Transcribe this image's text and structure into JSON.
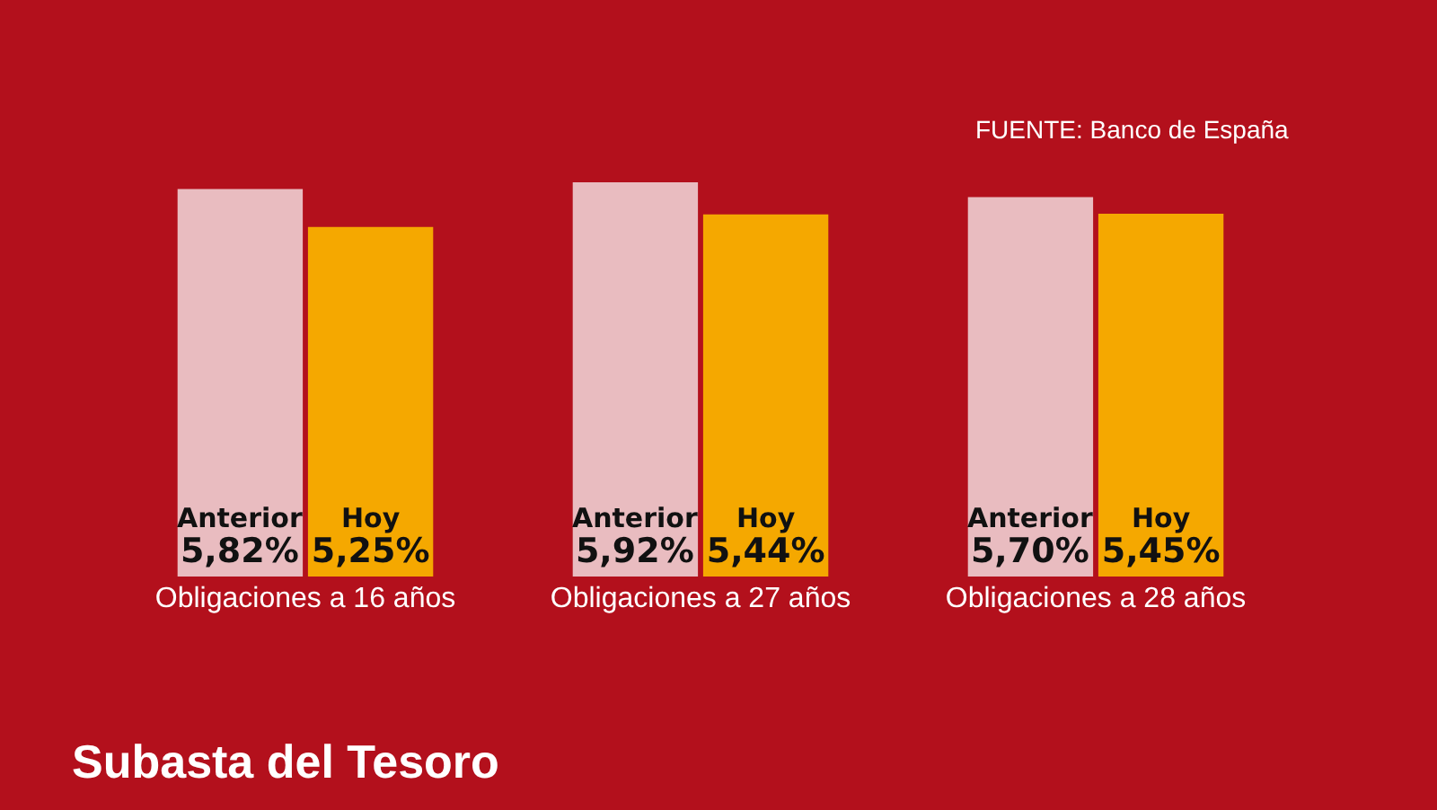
{
  "chart_data": {
    "type": "bar",
    "title": "Subasta del Tesoro",
    "annotations": [
      "FUENTE: Banco de España"
    ],
    "categories": [
      "Obligaciones a 16 años",
      "Obligaciones a 27 años",
      "Obligaciones a 28 años"
    ],
    "series": [
      {
        "name": "Anterior",
        "color": "#e9bcc0",
        "values": [
          5.82,
          5.92,
          5.7
        ],
        "value_labels": [
          "5,82%",
          "5,92%",
          "5,70%"
        ]
      },
      {
        "name": "Hoy",
        "color": "#f5a800",
        "values": [
          5.25,
          5.44,
          5.45
        ],
        "value_labels": [
          "5,25%",
          "5,44%",
          "5,45%"
        ]
      }
    ],
    "legend": false,
    "grid": false
  }
}
